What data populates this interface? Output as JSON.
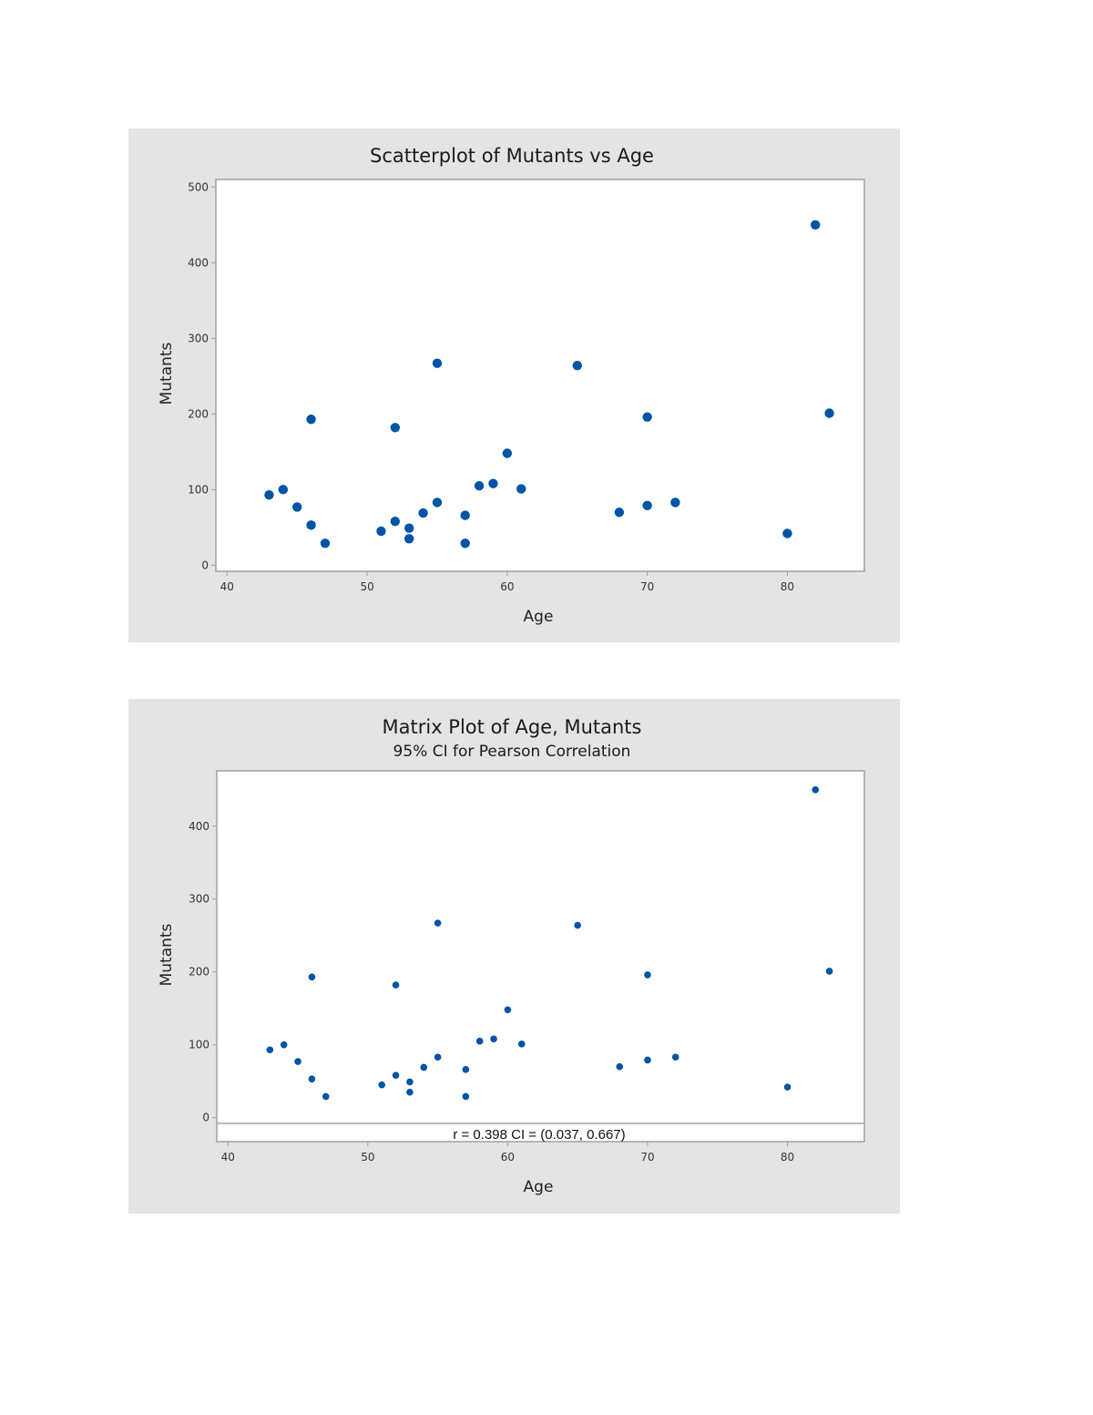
{
  "colors": {
    "panel_bg": "#e4e4e4",
    "plot_bg": "#ffffff",
    "frame": "#a0a0a0",
    "marker": "#0054a6"
  },
  "chart_data": [
    {
      "type": "scatter",
      "title": "Scatterplot of Mutants vs Age",
      "subtitle": "",
      "xlabel": "Age",
      "ylabel": "Mutants",
      "xlim": [
        39.2,
        85.5
      ],
      "ylim": [
        -8,
        510
      ],
      "xticks": [
        40,
        50,
        60,
        70,
        80
      ],
      "yticks": [
        0,
        100,
        200,
        300,
        400,
        500
      ],
      "grid": false,
      "legend": null,
      "annotation": "",
      "x": [
        43,
        44,
        45,
        46,
        46,
        47,
        51,
        52,
        52,
        53,
        53,
        54,
        55,
        55,
        57,
        57,
        58,
        59,
        60,
        61,
        65,
        68,
        70,
        70,
        72,
        80,
        82,
        83
      ],
      "y": [
        93,
        100,
        77,
        53,
        193,
        29,
        45,
        58,
        182,
        49,
        35,
        69,
        83,
        267,
        66,
        29,
        105,
        108,
        148,
        101,
        264,
        70,
        79,
        196,
        83,
        42,
        450,
        201
      ]
    },
    {
      "type": "scatter",
      "title": "Matrix Plot of Age, Mutants",
      "subtitle": "95% CI for Pearson Correlation",
      "xlabel": "Age",
      "ylabel": "Mutants",
      "xlim": [
        39.2,
        85.5
      ],
      "ylim": [
        -33,
        476
      ],
      "xticks": [
        40,
        50,
        60,
        70,
        80
      ],
      "yticks": [
        0,
        100,
        200,
        300,
        400
      ],
      "grid": false,
      "legend": null,
      "annotation": "r = 0.398  CI = (0.037, 0.667)",
      "pearson_r": 0.398,
      "ci_95": [
        0.037,
        0.667
      ],
      "x": [
        43,
        44,
        45,
        46,
        46,
        47,
        51,
        52,
        52,
        53,
        53,
        54,
        55,
        55,
        57,
        57,
        58,
        59,
        60,
        61,
        65,
        68,
        70,
        70,
        72,
        80,
        82,
        83
      ],
      "y": [
        93,
        100,
        77,
        53,
        193,
        29,
        45,
        58,
        182,
        49,
        35,
        69,
        83,
        267,
        66,
        29,
        105,
        108,
        148,
        101,
        264,
        70,
        79,
        196,
        83,
        42,
        450,
        201
      ]
    }
  ]
}
